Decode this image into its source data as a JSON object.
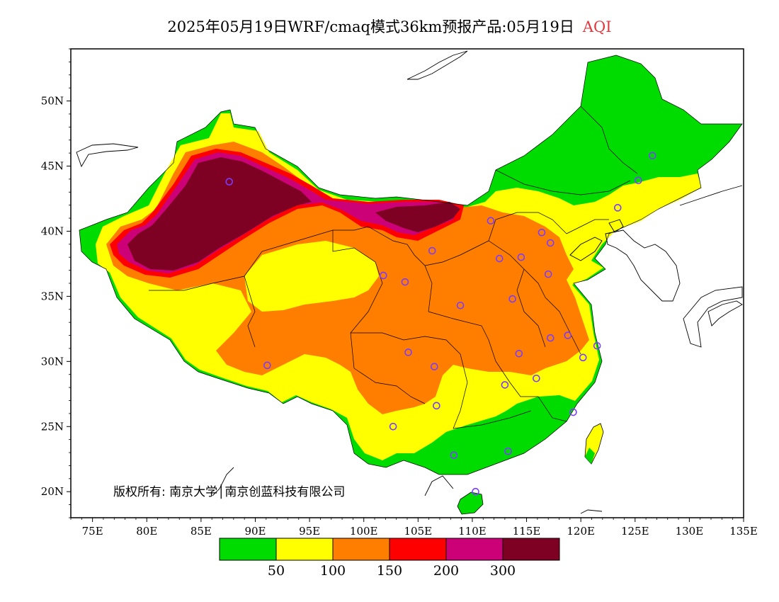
{
  "title": {
    "main": "2025年05月19日WRF/cmaq模式36km预报产品:05月19日",
    "variable": "AQI"
  },
  "map": {
    "lon_range": [
      73,
      135
    ],
    "lat_range": [
      18,
      54
    ],
    "lon_ticks": [
      "75E",
      "80E",
      "85E",
      "90E",
      "95E",
      "100E",
      "105E",
      "110E",
      "115E",
      "120E",
      "125E",
      "130E",
      "135E"
    ],
    "lon_tick_values": [
      75,
      80,
      85,
      90,
      95,
      100,
      105,
      110,
      115,
      120,
      125,
      130,
      135
    ],
    "lat_ticks": [
      "20N",
      "25N",
      "30N",
      "35N",
      "40N",
      "45N",
      "50N"
    ],
    "lat_tick_values": [
      20,
      25,
      30,
      35,
      40,
      45,
      50
    ],
    "copyright": "版权所有: 南京大学│南京创蓝科技有限公司"
  },
  "legend": {
    "colors": [
      "#00dc00",
      "#ffff00",
      "#ff7e00",
      "#ff0000",
      "#cc0077",
      "#7e0023"
    ],
    "labels": [
      "50",
      "100",
      "150",
      "200",
      "300"
    ]
  },
  "stations": [
    [
      87.6,
      43.8
    ],
    [
      91.1,
      29.7
    ],
    [
      101.8,
      36.6
    ],
    [
      103.8,
      36.1
    ],
    [
      106.3,
      38.5
    ],
    [
      104.1,
      30.7
    ],
    [
      106.5,
      29.6
    ],
    [
      106.7,
      26.6
    ],
    [
      102.7,
      25.0
    ],
    [
      108.3,
      22.8
    ],
    [
      110.3,
      20.0
    ],
    [
      113.3,
      23.1
    ],
    [
      119.3,
      26.1
    ],
    [
      115.9,
      28.7
    ],
    [
      113.0,
      28.2
    ],
    [
      114.3,
      30.6
    ],
    [
      117.2,
      31.8
    ],
    [
      118.8,
      32.0
    ],
    [
      120.2,
      30.3
    ],
    [
      121.5,
      31.2
    ],
    [
      117.0,
      36.7
    ],
    [
      113.7,
      34.8
    ],
    [
      112.5,
      37.9
    ],
    [
      114.5,
      38.0
    ],
    [
      116.4,
      39.9
    ],
    [
      117.2,
      39.1
    ],
    [
      111.7,
      40.8
    ],
    [
      108.9,
      34.3
    ],
    [
      123.4,
      41.8
    ],
    [
      125.3,
      43.9
    ],
    [
      126.6,
      45.8
    ]
  ]
}
